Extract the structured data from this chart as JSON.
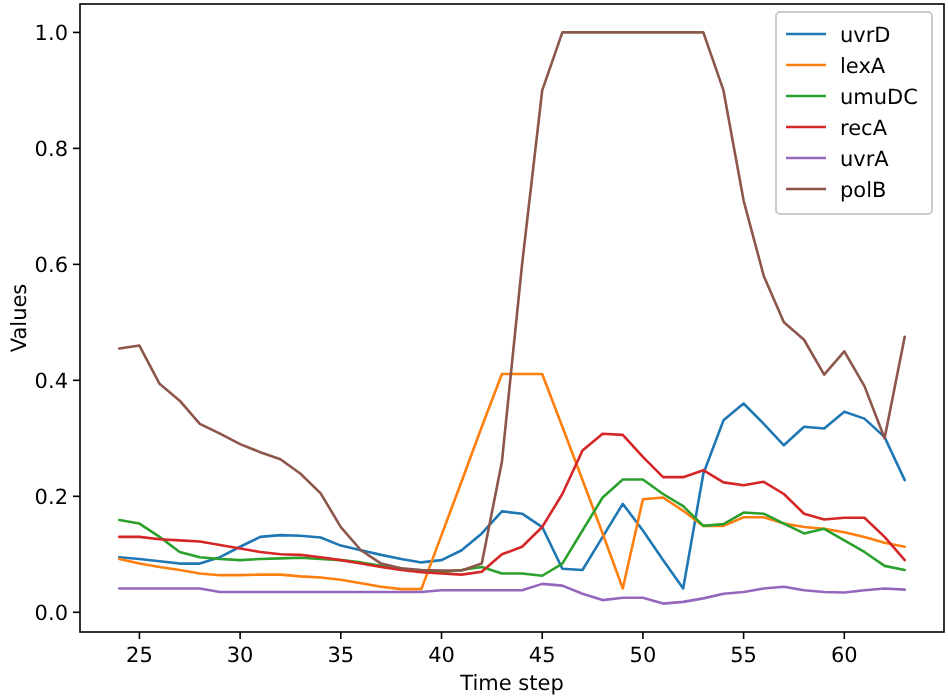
{
  "chart_data": {
    "type": "line",
    "xlabel": "Time step",
    "ylabel": "Values",
    "x": [
      24,
      25,
      26,
      27,
      28,
      29,
      30,
      31,
      32,
      33,
      34,
      35,
      36,
      37,
      38,
      39,
      40,
      41,
      42,
      43,
      44,
      45,
      46,
      47,
      48,
      49,
      50,
      51,
      52,
      53,
      54,
      55,
      56,
      57,
      58,
      59,
      60,
      61,
      62,
      63
    ],
    "xlim": [
      22.05,
      64.95
    ],
    "xticks": [
      25,
      30,
      35,
      40,
      45,
      50,
      55,
      60
    ],
    "ylim": [
      -0.034,
      1.049
    ],
    "yticks": [
      {
        "value": 0,
        "label": "0.0"
      },
      {
        "value": 0.2,
        "label": "0.2"
      },
      {
        "value": 0.4,
        "label": "0.4"
      },
      {
        "value": 0.6,
        "label": "0.6"
      },
      {
        "value": 0.8,
        "label": "0.8"
      },
      {
        "value": 1,
        "label": "1.0"
      }
    ],
    "grid": false,
    "legend": "top right",
    "marker": "none",
    "line_style": "solid",
    "series": [
      {
        "name": "uvrD",
        "color": "#1f77b4",
        "values": [
          0.095,
          0.092,
          0.088,
          0.084,
          0.084,
          0.095,
          0.113,
          0.13,
          0.133,
          0.132,
          0.129,
          0.115,
          0.107,
          0.099,
          0.092,
          0.086,
          0.09,
          0.107,
          0.136,
          0.174,
          0.17,
          0.147,
          0.075,
          0.073,
          0.13,
          0.187,
          0.141,
          0.09,
          0.041,
          0.239,
          0.331,
          0.36,
          0.325,
          0.288,
          0.32,
          0.317,
          0.346,
          0.334,
          0.302,
          0.228
        ]
      },
      {
        "name": "lexA",
        "color": "#ff7f0e",
        "values": [
          0.092,
          0.084,
          0.078,
          0.073,
          0.067,
          0.064,
          0.064,
          0.065,
          0.065,
          0.062,
          0.06,
          0.056,
          0.05,
          0.044,
          0.04,
          0.04,
          0.133,
          0.226,
          0.32,
          0.411,
          0.411,
          0.411,
          0.32,
          0.228,
          0.136,
          0.041,
          0.195,
          0.198,
          0.175,
          0.149,
          0.149,
          0.164,
          0.164,
          0.153,
          0.147,
          0.144,
          0.138,
          0.13,
          0.12,
          0.113
        ]
      },
      {
        "name": "umuDC",
        "color": "#2ca02c",
        "values": [
          0.159,
          0.153,
          0.13,
          0.104,
          0.095,
          0.092,
          0.09,
          0.092,
          0.093,
          0.094,
          0.092,
          0.09,
          0.086,
          0.08,
          0.075,
          0.07,
          0.069,
          0.073,
          0.078,
          0.067,
          0.067,
          0.063,
          0.084,
          0.141,
          0.198,
          0.229,
          0.229,
          0.204,
          0.183,
          0.149,
          0.152,
          0.172,
          0.17,
          0.153,
          0.136,
          0.144,
          0.124,
          0.104,
          0.08,
          0.073
        ]
      },
      {
        "name": "recA",
        "color": "#d62728",
        "values": [
          0.13,
          0.13,
          0.126,
          0.124,
          0.122,
          0.116,
          0.11,
          0.104,
          0.1,
          0.099,
          0.095,
          0.09,
          0.084,
          0.078,
          0.073,
          0.069,
          0.067,
          0.065,
          0.07,
          0.1,
          0.113,
          0.147,
          0.204,
          0.279,
          0.308,
          0.306,
          0.268,
          0.233,
          0.233,
          0.245,
          0.224,
          0.219,
          0.225,
          0.204,
          0.17,
          0.16,
          0.163,
          0.163,
          0.13,
          0.09
        ]
      },
      {
        "name": "uvrA",
        "color": "#9467bd",
        "values": [
          0.041,
          0.041,
          0.041,
          0.041,
          0.041,
          0.035,
          0.035,
          0.035,
          0.035,
          0.035,
          0.035,
          0.035,
          0.035,
          0.035,
          0.035,
          0.035,
          0.038,
          0.038,
          0.038,
          0.038,
          0.038,
          0.049,
          0.046,
          0.032,
          0.021,
          0.025,
          0.025,
          0.015,
          0.018,
          0.024,
          0.032,
          0.035,
          0.041,
          0.044,
          0.038,
          0.035,
          0.034,
          0.038,
          0.041,
          0.039
        ]
      },
      {
        "name": "polB",
        "color": "#8c564b",
        "values": [
          0.455,
          0.46,
          0.394,
          0.365,
          0.325,
          0.308,
          0.29,
          0.276,
          0.264,
          0.239,
          0.205,
          0.147,
          0.107,
          0.084,
          0.076,
          0.073,
          0.072,
          0.072,
          0.084,
          0.26,
          0.6,
          0.9,
          1.0,
          1.0,
          1.0,
          1.0,
          1.0,
          1.0,
          1.0,
          1.0,
          0.9,
          0.71,
          0.58,
          0.5,
          0.47,
          0.41,
          0.45,
          0.39,
          0.3,
          0.475
        ]
      }
    ]
  }
}
